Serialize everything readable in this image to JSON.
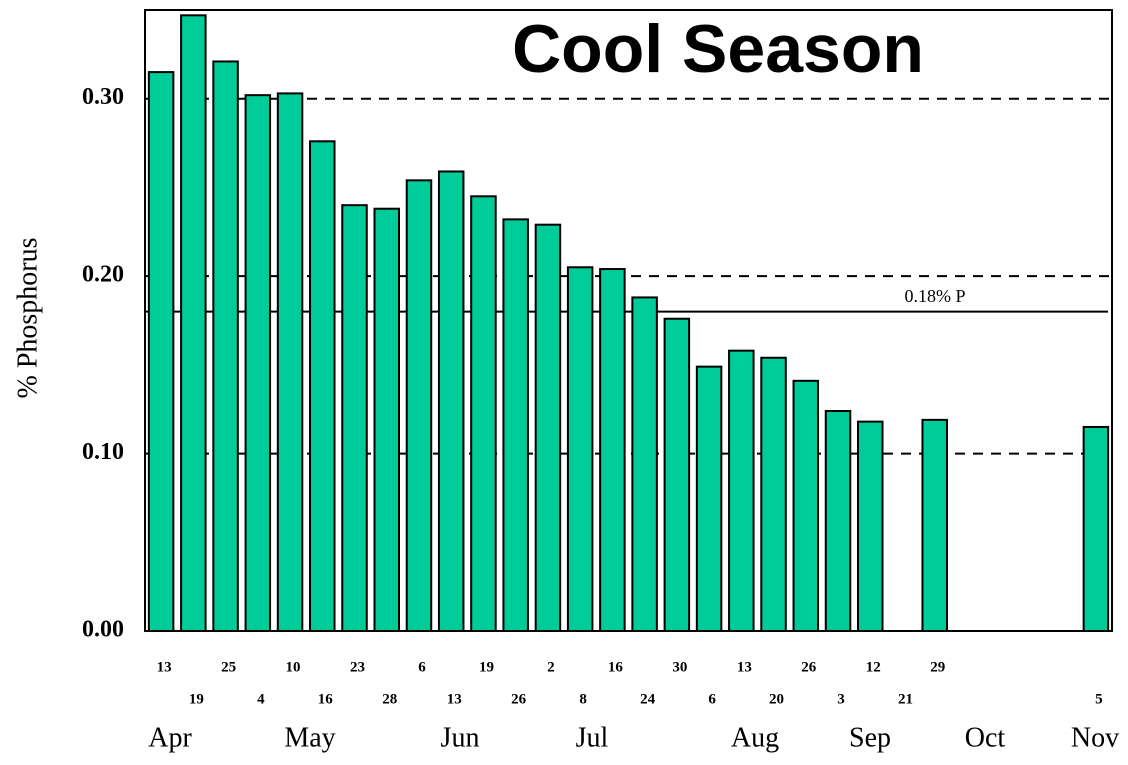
{
  "chart_data": {
    "type": "bar",
    "title": "Cool Season",
    "y_label": "% Phosphorus",
    "color": "#00cc99",
    "categories": [
      "13",
      "19",
      "25",
      "4",
      "10",
      "16",
      "23",
      "28",
      "6",
      "13",
      "19",
      "26",
      "2",
      "8",
      "16",
      "24",
      "30",
      "6",
      "13",
      "20",
      "26",
      "3",
      "12",
      "21",
      "29",
      null,
      null,
      null,
      null,
      "5"
    ],
    "values": [
      0.315,
      0.347,
      0.321,
      0.302,
      0.303,
      0.276,
      0.24,
      0.238,
      0.254,
      0.259,
      0.245,
      0.232,
      0.229,
      0.205,
      0.204,
      0.188,
      0.176,
      0.149,
      0.158,
      0.154,
      0.141,
      0.124,
      0.118,
      null,
      0.119,
      null,
      null,
      null,
      null,
      0.115
    ],
    "months": [
      "Apr",
      "May",
      "Jun",
      "Jul",
      "Aug",
      "Sep",
      "Oct",
      "Nov"
    ],
    "ylim": [
      0,
      0.35
    ],
    "yticks": [
      {
        "value": 0,
        "label": "0.00"
      },
      {
        "value": 0.1,
        "label": "0.10"
      },
      {
        "value": 0.2,
        "label": "0.20"
      },
      {
        "value": 0.3,
        "label": "0.30"
      }
    ],
    "grid": true,
    "reference_line": {
      "value": 0.18,
      "label": "0.18% P"
    }
  }
}
